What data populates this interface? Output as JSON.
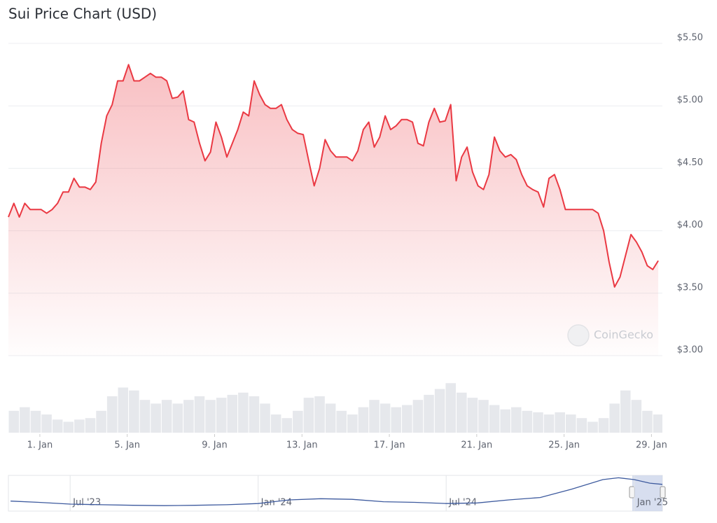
{
  "chart_data": {
    "type": "area",
    "title": "Sui Price Chart (USD)",
    "watermark": "CoinGecko",
    "series": [
      {
        "name": "Price",
        "color": "#ea3943",
        "x": [
          -0.44,
          -0.19,
          0.06,
          0.31,
          0.56,
          0.81,
          1.06,
          1.31,
          1.56,
          1.81,
          2.06,
          2.31,
          2.56,
          2.81,
          3.06,
          3.31,
          3.56,
          3.81,
          4.06,
          4.31,
          4.56,
          4.81,
          5.06,
          5.31,
          5.56,
          5.81,
          6.06,
          6.31,
          6.56,
          6.81,
          7.06,
          7.31,
          7.56,
          7.81,
          8.06,
          8.31,
          8.56,
          8.81,
          9.06,
          9.31,
          9.56,
          9.81,
          10.06,
          10.31,
          10.56,
          10.81,
          11.06,
          11.31,
          11.56,
          11.81,
          12.06,
          12.31,
          12.56,
          12.81,
          13.06,
          13.31,
          13.56,
          13.81,
          14.06,
          14.31,
          14.56,
          14.81,
          15.06,
          15.31,
          15.56,
          15.81,
          16.06,
          16.31,
          16.56,
          16.81,
          17.06,
          17.31,
          17.56,
          17.81,
          18.06,
          18.31,
          18.56,
          18.81,
          19.06,
          19.31,
          19.56,
          19.81,
          20.06,
          20.31,
          20.56,
          20.81,
          21.06,
          21.31,
          21.56,
          21.81,
          22.06,
          22.31,
          22.56,
          22.81,
          23.06,
          23.31,
          23.56,
          23.81,
          24.06,
          24.31,
          24.56,
          24.81,
          25.06,
          25.31,
          25.56,
          25.81,
          26.06,
          26.31,
          26.56,
          26.81,
          27.06,
          27.31,
          27.56,
          27.81,
          28.06,
          28.31,
          28.56,
          28.81,
          29.06,
          29.31
        ],
        "values": [
          4.11,
          4.22,
          4.11,
          4.22,
          4.17,
          4.17,
          4.17,
          4.14,
          4.17,
          4.22,
          4.31,
          4.31,
          4.42,
          4.35,
          4.35,
          4.33,
          4.39,
          4.7,
          4.92,
          5.01,
          5.2,
          5.2,
          5.33,
          5.2,
          5.2,
          5.23,
          5.26,
          5.23,
          5.23,
          5.2,
          5.06,
          5.07,
          5.12,
          4.89,
          4.87,
          4.7,
          4.56,
          4.63,
          4.87,
          4.75,
          4.59,
          4.7,
          4.81,
          4.95,
          4.92,
          5.2,
          5.09,
          5.01,
          4.98,
          4.98,
          5.01,
          4.89,
          4.81,
          4.78,
          4.77,
          4.56,
          4.36,
          4.5,
          4.73,
          4.64,
          4.59,
          4.59,
          4.59,
          4.56,
          4.64,
          4.81,
          4.87,
          4.67,
          4.75,
          4.92,
          4.81,
          4.84,
          4.89,
          4.89,
          4.87,
          4.7,
          4.68,
          4.87,
          4.98,
          4.87,
          4.88,
          5.01,
          4.4,
          4.59,
          4.67,
          4.47,
          4.36,
          4.33,
          4.45,
          4.75,
          4.64,
          4.59,
          4.61,
          4.57,
          4.45,
          4.36,
          4.33,
          4.31,
          4.19,
          4.42,
          4.45,
          4.33,
          4.17,
          4.17,
          4.17,
          4.17,
          4.17,
          4.17,
          4.14,
          4.0,
          3.75,
          3.55,
          3.63,
          3.8,
          3.97,
          3.91,
          3.83,
          3.72,
          3.69,
          3.76
        ]
      }
    ],
    "xlim": [
      -0.44,
      29.5
    ],
    "xticks": [
      {
        "value": 1,
        "label": "1. Jan"
      },
      {
        "value": 5,
        "label": "5. Jan"
      },
      {
        "value": 9,
        "label": "9. Jan"
      },
      {
        "value": 13,
        "label": "13. Jan"
      },
      {
        "value": 17,
        "label": "17. Jan"
      },
      {
        "value": 21,
        "label": "21. Jan"
      },
      {
        "value": 25,
        "label": "25. Jan"
      },
      {
        "value": 29,
        "label": "29. Jan"
      }
    ],
    "ylim": [
      3.0,
      5.5
    ],
    "yticks": [
      {
        "value": 3,
        "label": "$3.00"
      },
      {
        "value": 3.5,
        "label": "$3.50"
      },
      {
        "value": 4,
        "label": "$4.00"
      },
      {
        "value": 4.5,
        "label": "$4.50"
      },
      {
        "value": 5,
        "label": "$5.00"
      },
      {
        "value": 5.5,
        "label": "$5.50"
      }
    ],
    "grid": true,
    "volume": {
      "color": "#e6e8ec",
      "x": [
        -0.19,
        0.31,
        0.81,
        1.31,
        1.81,
        2.31,
        2.81,
        3.31,
        3.81,
        4.31,
        4.81,
        5.31,
        5.81,
        6.31,
        6.81,
        7.31,
        7.81,
        8.31,
        8.81,
        9.31,
        9.81,
        10.31,
        10.81,
        11.31,
        11.81,
        12.31,
        12.81,
        13.31,
        13.81,
        14.31,
        14.81,
        15.31,
        15.81,
        16.31,
        16.81,
        17.31,
        17.81,
        18.31,
        18.81,
        19.31,
        19.81,
        20.31,
        20.81,
        21.31,
        21.81,
        22.31,
        22.81,
        23.31,
        23.81,
        24.31,
        24.81,
        25.31,
        25.81,
        26.31,
        26.81,
        27.31,
        27.81,
        28.31,
        28.81,
        29.31
      ],
      "values": [
        30,
        35,
        30,
        25,
        18,
        15,
        18,
        20,
        30,
        50,
        62,
        58,
        45,
        40,
        45,
        40,
        45,
        50,
        45,
        48,
        52,
        55,
        50,
        40,
        25,
        20,
        30,
        48,
        50,
        40,
        30,
        25,
        35,
        45,
        40,
        35,
        38,
        45,
        52,
        60,
        68,
        55,
        48,
        45,
        38,
        32,
        35,
        30,
        28,
        25,
        28,
        25,
        20,
        15,
        20,
        40,
        58,
        45,
        30,
        25
      ],
      "ylim": [
        0,
        75
      ]
    },
    "navigator": {
      "color": "#3d5a9e",
      "x": [
        -1.9,
        -1,
        0,
        1,
        2,
        3,
        4,
        5,
        6,
        7,
        8,
        9,
        10,
        11,
        12,
        13,
        14,
        15,
        16,
        17,
        17.5,
        18,
        18.5,
        18.9
      ],
      "values": [
        1.2,
        1.0,
        0.7,
        0.6,
        0.5,
        0.45,
        0.5,
        0.6,
        0.8,
        1.4,
        1.6,
        1.5,
        1.1,
        1.0,
        0.8,
        0.9,
        1.4,
        1.8,
        3.2,
        4.8,
        5.1,
        4.8,
        4.2,
        4.0
      ],
      "xlim": [
        -1.97,
        18.9
      ],
      "ylim": [
        0,
        5.5
      ],
      "xticks": [
        {
          "value": 0,
          "label": "Jul '23"
        },
        {
          "value": 6,
          "label": "Jan '24"
        },
        {
          "value": 12,
          "label": "Jul '24"
        },
        {
          "value": 18,
          "label": "Jan '25"
        }
      ]
    }
  }
}
